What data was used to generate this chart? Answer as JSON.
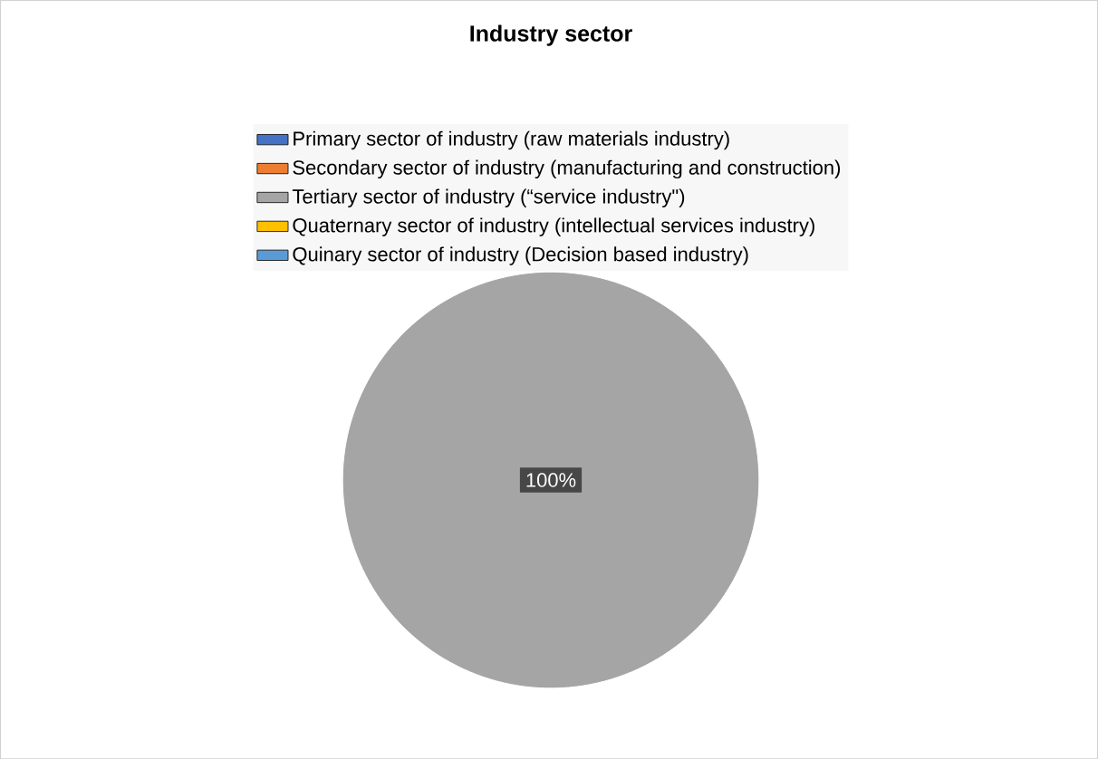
{
  "chart_data": {
    "type": "pie",
    "title": "Industry sector",
    "categories": [
      "Primary sector of industry (raw materials industry)",
      "Secondary sector of industry (manufacturing and construction)",
      "Tertiary sector of industry (“service industry\")",
      "Quaternary sector of industry (intellectual services industry)",
      "Quinary sector of industry (Decision based industry)"
    ],
    "values": [
      0,
      0,
      100,
      0,
      0
    ],
    "colors": [
      "#4472c4",
      "#ed7d31",
      "#a5a5a5",
      "#ffc000",
      "#5b9bd5"
    ],
    "value_labels": [
      null,
      null,
      "100%",
      null,
      null
    ],
    "legend": "top"
  }
}
